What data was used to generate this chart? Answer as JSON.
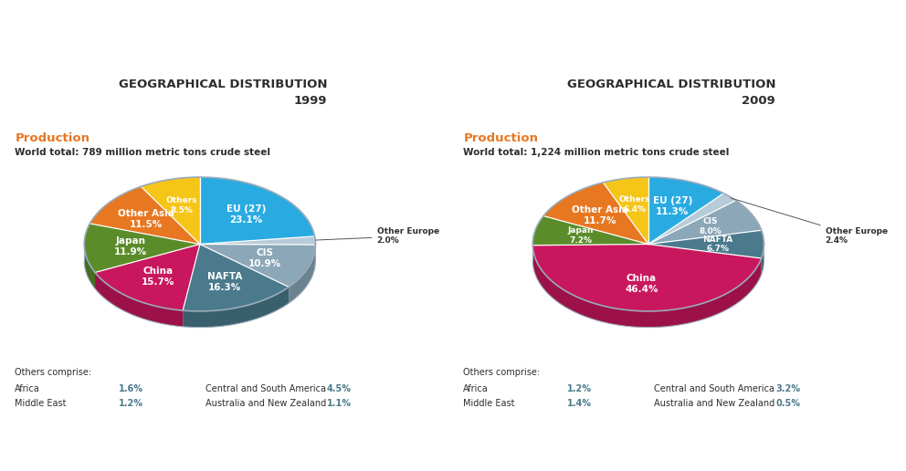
{
  "title1": "GEOGRAPHICAL DISTRIBUTION\n1999",
  "title2": "GEOGRAPHICAL DISTRIBUTION\n2009",
  "production_label": "Production",
  "total1": "World total: 789 million metric tons crude steel",
  "total2": "World total: 1,224 million metric tons crude steel",
  "chart1": {
    "labels": [
      "EU (27)",
      "Other Europe",
      "CIS",
      "NAFTA",
      "China",
      "Japan",
      "Other Asia",
      "Others"
    ],
    "values": [
      23.1,
      2.0,
      10.9,
      16.3,
      15.7,
      11.9,
      11.5,
      8.5
    ],
    "colors": [
      "#29ABE2",
      "#B8CBD8",
      "#8BA7B8",
      "#4A7A8C",
      "#C8175D",
      "#5B8C2A",
      "#E87722",
      "#F5C518"
    ]
  },
  "chart2": {
    "labels": [
      "EU (27)",
      "Other Europe",
      "CIS",
      "NAFTA",
      "China",
      "Japan",
      "Other Asia",
      "Others"
    ],
    "values": [
      11.3,
      2.4,
      8.0,
      6.7,
      46.4,
      7.2,
      11.7,
      6.4
    ],
    "colors": [
      "#29ABE2",
      "#B8CBD8",
      "#8BA7B8",
      "#4A7A8C",
      "#C8175D",
      "#5B8C2A",
      "#E87722",
      "#F5C518"
    ]
  },
  "others_comprise_label": "Others comprise:",
  "footer1": {
    "col1": [
      [
        "Africa",
        "1.6%"
      ],
      [
        "Middle East",
        "1.2%"
      ]
    ],
    "col2": [
      [
        "Central and South America",
        "4.5%"
      ],
      [
        "Australia and New Zealand",
        "1.1%"
      ]
    ]
  },
  "footer2": {
    "col1": [
      [
        "Africa",
        "1.2%"
      ],
      [
        "Middle East",
        "1.4%"
      ]
    ],
    "col2": [
      [
        "Central and South America",
        "3.2%"
      ],
      [
        "Australia and New Zealand",
        "0.5%"
      ]
    ]
  },
  "orange_color": "#E87722",
  "dark_text": "#2D2D2D",
  "teal_text": "#4A7A8C",
  "bg_color": "#FFFFFF",
  "rim_color": "#9BAAB8"
}
